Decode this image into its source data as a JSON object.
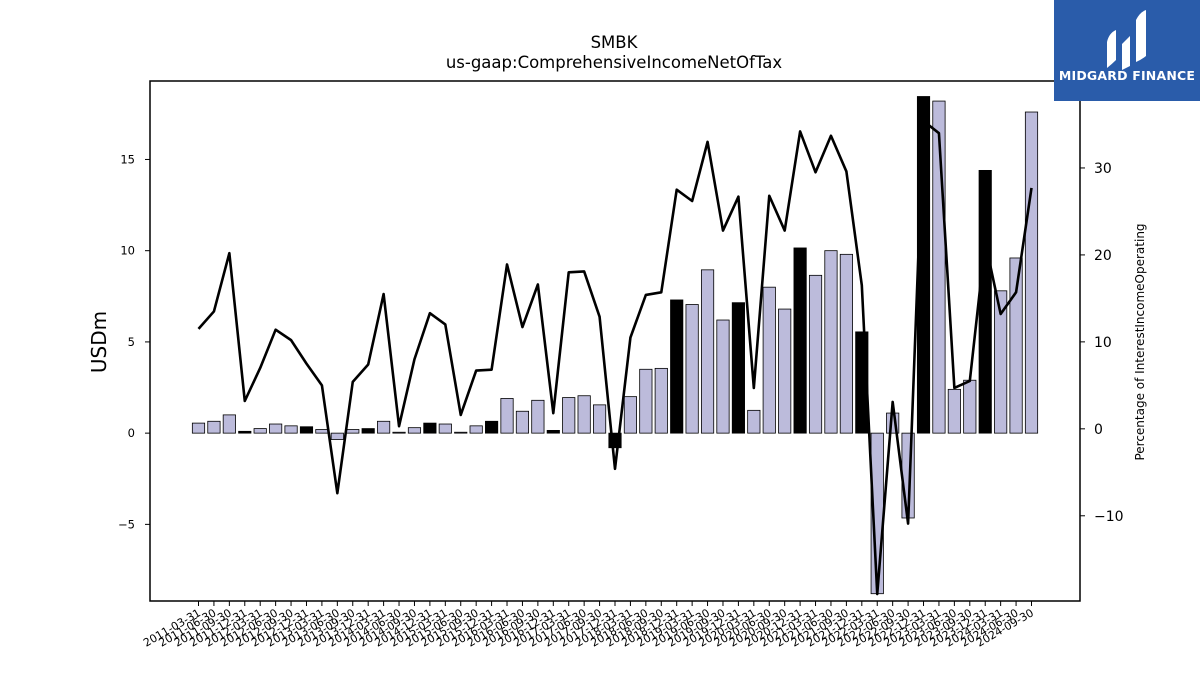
{
  "chart_data": {
    "type": "bar",
    "title": "SMBK",
    "subtitle": "us-gaap:ComprehensiveIncomeNetOfTax",
    "ylabel": "USDm",
    "y2label": "Percentage of InterestIncomeOperating",
    "ylim": [
      -9.2,
      19.3
    ],
    "y2lim": [
      -19.8,
      40.0
    ],
    "yticks": [
      -5,
      0,
      5,
      10,
      15
    ],
    "y2ticks": [
      -10,
      0,
      10,
      20,
      30,
      40
    ],
    "ytick_labels": [
      "−5",
      "0",
      "5",
      "10",
      "15"
    ],
    "y2tick_labels": [
      "−10",
      "0",
      "10",
      "20",
      "30",
      "40"
    ],
    "grid": false,
    "categories": [
      "2011-03-31",
      "2011-06-30",
      "2011-09-30",
      "2011-12-31",
      "2012-03-31",
      "2012-06-30",
      "2012-09-30",
      "2012-12-31",
      "2013-03-31",
      "2013-06-30",
      "2013-09-30",
      "2013-12-31",
      "2014-03-31",
      "2014-06-30",
      "2014-09-30",
      "2014-12-31",
      "2015-03-31",
      "2015-06-30",
      "2015-09-30",
      "2015-12-31",
      "2016-03-31",
      "2016-06-30",
      "2016-09-30",
      "2016-12-31",
      "2017-03-31",
      "2017-06-30",
      "2017-09-30",
      "2017-12-31",
      "2018-03-31",
      "2018-06-30",
      "2018-09-30",
      "2018-12-31",
      "2019-03-31",
      "2019-06-30",
      "2019-09-30",
      "2019-12-31",
      "2020-03-31",
      "2020-06-30",
      "2020-09-30",
      "2020-12-31",
      "2021-03-31",
      "2021-06-30",
      "2021-09-30",
      "2021-12-31",
      "2022-03-31",
      "2022-06-30",
      "2022-09-30",
      "2022-12-31",
      "2023-03-31",
      "2023-06-30",
      "2023-09-30",
      "2023-12-31",
      "2024-03-31",
      "2024-06-30",
      "2024-09-30"
    ],
    "xtick_labels": [
      "2011-03-31",
      "2011-06-30",
      "2011-09-30",
      "2011-12-31",
      "2012-03-31",
      "2012-06-30",
      "2012-09-30",
      "2012-12-31",
      "2013-03-31",
      "2013-06-30",
      "2013-09-30",
      "2013-12-31",
      "2014-03-31",
      "2014-06-30",
      "2014-09-30",
      "2014-12-31",
      "2015-03-31",
      "2015-06-30",
      "2015-09-30",
      "2015-12-31",
      "2016-03-31",
      "2016-06-30",
      "2016-09-30",
      "2016-12-31",
      "2017-03-31",
      "2017-06-30",
      "2017-09-30",
      "2017-12-31",
      "2018-03-31",
      "2018-06-30",
      "2018-09-30",
      "2018-12-31",
      "2019-03-31",
      "2019-06-30",
      "2019-09-30",
      "2019-12-31",
      "2020-03-31",
      "2020-06-30",
      "2020-09-30",
      "2020-12-31",
      "2021-03-31",
      "2021-06-30",
      "2021-09-30",
      "2021-12-31",
      "2022-03-31",
      "2022-06-30",
      "2022-09-30",
      "2022-12-31",
      "2023-03-31",
      "2023-06-30",
      "2023-09-30",
      "2023-12-31",
      "2024-03-31",
      "2024-06-30",
      "2024-09-30"
    ],
    "series": [
      {
        "type": "bar",
        "axis": "left",
        "values": [
          0.55,
          0.65,
          1.0,
          0.1,
          0.25,
          0.5,
          0.4,
          0.35,
          0.2,
          -0.35,
          0.2,
          0.25,
          0.65,
          0.05,
          0.3,
          0.55,
          0.5,
          0.05,
          0.4,
          0.65,
          1.9,
          1.2,
          1.8,
          0.15,
          1.95,
          2.05,
          1.55,
          -0.8,
          2.0,
          3.5,
          3.55,
          7.3,
          7.05,
          8.95,
          6.2,
          7.15,
          1.25,
          8.0,
          6.8,
          10.15,
          8.65,
          10.0,
          9.8,
          5.55,
          -8.8,
          1.1,
          -4.65,
          18.45,
          18.2,
          2.4,
          2.9,
          14.4,
          7.8,
          9.6,
          17.6
        ],
        "highlight": [
          false,
          false,
          false,
          true,
          false,
          false,
          false,
          true,
          false,
          false,
          false,
          true,
          false,
          false,
          false,
          true,
          false,
          false,
          false,
          true,
          false,
          false,
          false,
          true,
          false,
          false,
          false,
          true,
          false,
          false,
          false,
          true,
          false,
          false,
          false,
          true,
          false,
          false,
          false,
          true,
          false,
          false,
          false,
          true,
          false,
          false,
          false,
          true,
          false,
          false,
          false,
          true,
          false,
          false,
          false
        ],
        "colors": {
          "normal": "#bcbbdb",
          "highlight": "#000000",
          "edge": "#000000"
        }
      },
      {
        "type": "line",
        "axis": "right",
        "values": [
          11.5,
          13.5,
          20.2,
          3.2,
          7.0,
          11.4,
          10.2,
          7.5,
          5.0,
          -7.4,
          5.4,
          7.4,
          15.5,
          0.3,
          8.0,
          13.3,
          12.0,
          1.6,
          6.7,
          6.8,
          18.9,
          11.7,
          16.6,
          1.8,
          18.0,
          18.1,
          12.9,
          -4.6,
          10.5,
          15.4,
          15.7,
          27.5,
          26.2,
          33.0,
          22.8,
          26.7,
          4.7,
          26.8,
          22.8,
          34.2,
          29.5,
          33.7,
          29.6,
          16.5,
          -19.0,
          3.1,
          -10.9,
          35.4,
          34.0,
          4.7,
          5.5,
          21.5,
          13.2,
          15.7,
          27.7
        ],
        "color": "#000000"
      }
    ]
  },
  "logo": {
    "text": "MIDGARD FINANCE",
    "colors": {
      "background": "#2a5caa",
      "foreground": "#ffffff"
    }
  }
}
